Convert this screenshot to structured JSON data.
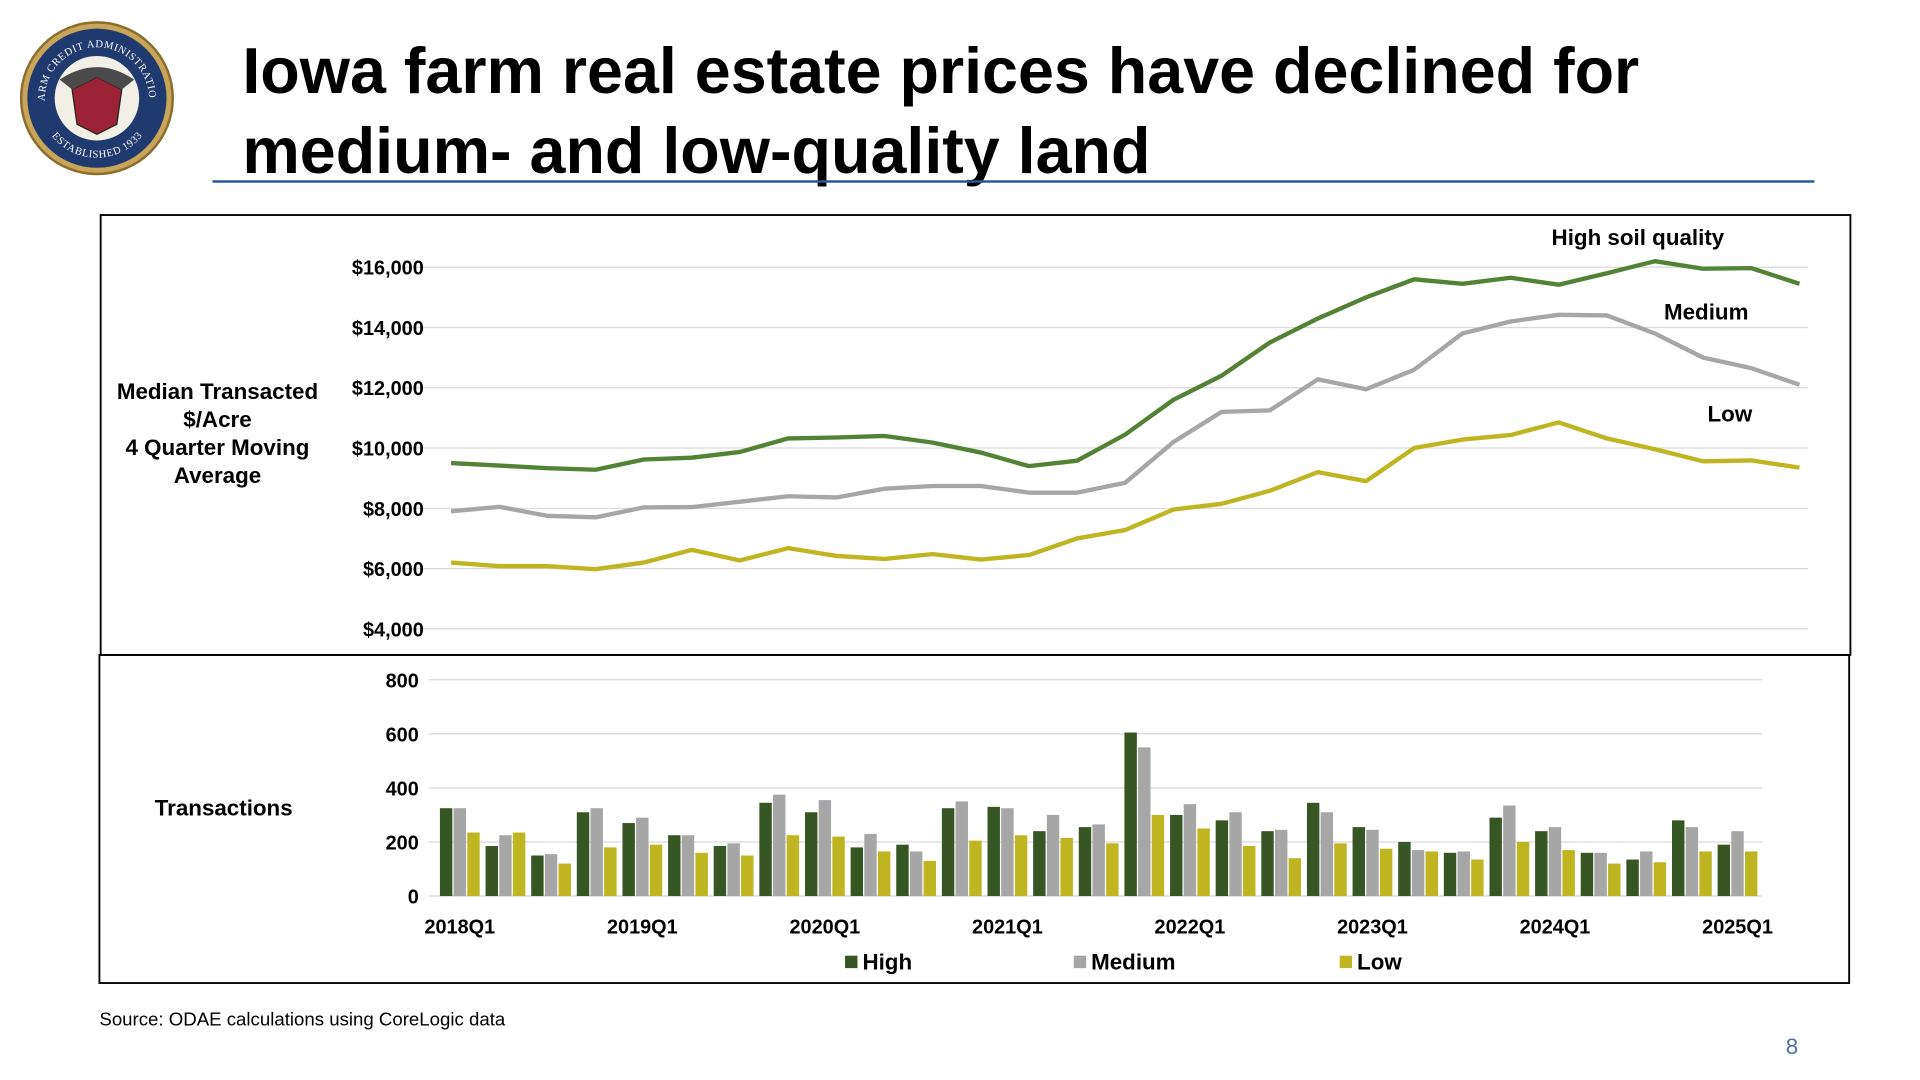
{
  "header": {
    "title_lines": [
      "Iowa farm real estate prices have declined for",
      "medium- and low-quality land"
    ],
    "logo": {
      "top": "FARM CREDIT ADMINISTRATION",
      "bottom": "ESTABLISHED 1933"
    }
  },
  "chart_data": [
    {
      "type": "line",
      "ylabel": [
        "Median Transacted",
        "$/Acre",
        "4 Quarter Moving",
        "Average"
      ],
      "ylim": [
        4000,
        16000
      ],
      "yticks": [
        {
          "value": 4000,
          "label": "$4,000"
        },
        {
          "value": 6000,
          "label": "$6,000"
        },
        {
          "value": 8000,
          "label": "$8,000"
        },
        {
          "value": 10000,
          "label": "$10,000"
        },
        {
          "value": 12000,
          "label": "$12,000"
        },
        {
          "value": 14000,
          "label": "$14,000"
        },
        {
          "value": 16000,
          "label": "$16,000"
        }
      ],
      "grid": true,
      "series": [
        {
          "name": "High soil quality",
          "color": "#548235",
          "values": [
            9500,
            9420,
            9330,
            9280,
            9620,
            9680,
            9870,
            10320,
            10350,
            10400,
            10180,
            9850,
            9400,
            9580,
            10450,
            11600,
            12400,
            13500,
            14300,
            15000,
            15600,
            15450,
            15650,
            15420,
            15800,
            16200,
            15950,
            15970,
            15450
          ]
        },
        {
          "name": "Medium",
          "color": "#a6a6a6",
          "values": [
            7900,
            8050,
            7750,
            7700,
            8030,
            8040,
            8220,
            8400,
            8360,
            8650,
            8740,
            8740,
            8520,
            8520,
            8850,
            10200,
            11200,
            11250,
            12280,
            11950,
            12600,
            13800,
            14200,
            14420,
            14400,
            13800,
            13000,
            12650,
            12100
          ]
        },
        {
          "name": "Low",
          "color": "#bfb520",
          "values": [
            6200,
            6080,
            6080,
            5980,
            6200,
            6620,
            6270,
            6680,
            6420,
            6320,
            6480,
            6300,
            6450,
            7000,
            7280,
            7960,
            8150,
            8580,
            9200,
            8900,
            10000,
            10280,
            10430,
            10850,
            10320,
            9960,
            9560,
            9590,
            9350
          ]
        }
      ]
    },
    {
      "type": "bar",
      "ylabel": "Transactions",
      "categories": [
        "2018Q1",
        null,
        null,
        null,
        "2019Q1",
        null,
        null,
        null,
        "2020Q1",
        null,
        null,
        null,
        "2021Q1",
        null,
        null,
        null,
        "2022Q1",
        null,
        null,
        null,
        "2023Q1",
        null,
        null,
        null,
        "2024Q1",
        null,
        null,
        null,
        "2025Q1"
      ],
      "ylim": [
        0,
        800
      ],
      "yticks": [
        0,
        200,
        400,
        600,
        800
      ],
      "grid": true,
      "legend": "bottom",
      "series": [
        {
          "name": "High",
          "color": "#375623",
          "values": [
            325,
            185,
            150,
            310,
            270,
            225,
            185,
            345,
            310,
            180,
            190,
            325,
            330,
            240,
            255,
            605,
            300,
            280,
            240,
            345,
            255,
            200,
            160,
            290,
            240,
            160,
            135,
            280,
            190
          ]
        },
        {
          "name": "Medium",
          "color": "#a6a6a6",
          "values": [
            325,
            225,
            155,
            325,
            290,
            225,
            195,
            375,
            355,
            230,
            165,
            350,
            325,
            300,
            265,
            550,
            340,
            310,
            245,
            310,
            245,
            170,
            165,
            335,
            255,
            160,
            165,
            255,
            240
          ]
        },
        {
          "name": "Low",
          "color": "#bfb520",
          "values": [
            235,
            235,
            120,
            180,
            190,
            160,
            150,
            225,
            220,
            165,
            130,
            205,
            225,
            215,
            195,
            300,
            250,
            185,
            140,
            195,
            175,
            165,
            135,
            200,
            170,
            120,
            125,
            165,
            165
          ]
        }
      ]
    }
  ],
  "footer": {
    "source": "Source: ODAE calculations using CoreLogic data",
    "page": "8"
  }
}
